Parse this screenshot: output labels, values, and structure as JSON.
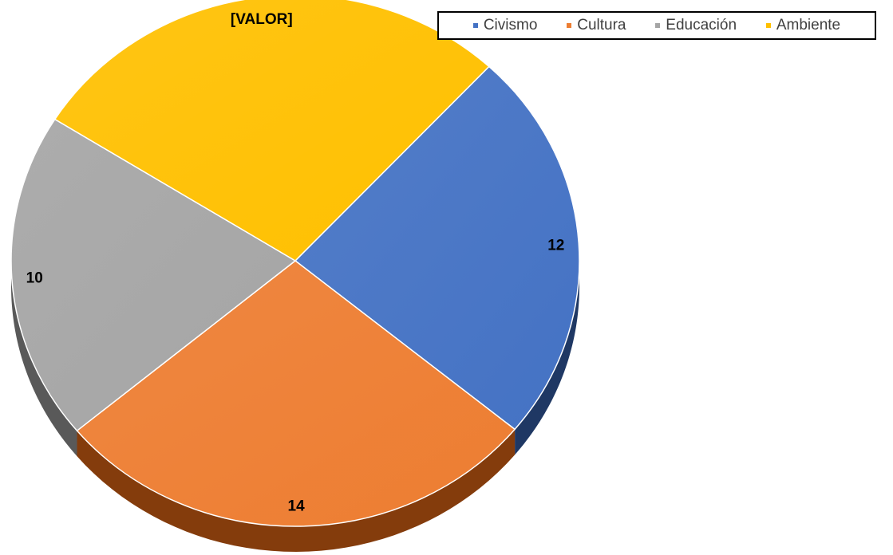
{
  "chart_data": {
    "type": "pie",
    "style": "3d",
    "categories": [
      "Civismo",
      "Cultura",
      "Educación",
      "Ambiente"
    ],
    "values": [
      12,
      14,
      10,
      14
    ],
    "data_labels": [
      "12",
      "14",
      "10",
      "[VALOR]"
    ],
    "colors": [
      "#4472c4",
      "#ed7d31",
      "#a5a5a5",
      "#ffc000"
    ],
    "side_colors": [
      "#1f3864",
      "#843c0c",
      "#595959",
      "#7f6000"
    ],
    "legend_position": "top-right",
    "title": ""
  }
}
